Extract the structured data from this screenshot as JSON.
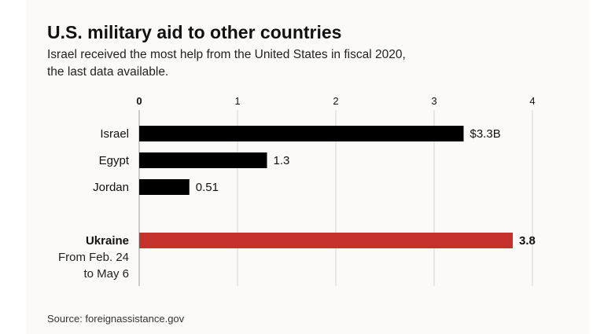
{
  "header": {
    "title": "U.S. military aid to other countries",
    "subtitle": "Israel received the most help from the United States in fiscal 2020, the last data available."
  },
  "footer": {
    "source": "Source: foreignassistance.gov"
  },
  "colors": {
    "background": "#fcfaf8",
    "default_bar": "#000000",
    "highlight_bar": "#c5322b",
    "gridline": "#d9d6d2",
    "axis": "#bbbbbb"
  },
  "chart_data": {
    "type": "bar",
    "orientation": "horizontal",
    "title": "U.S. military aid to other countries",
    "xlabel": "",
    "ylabel": "",
    "unit": "billions of dollars",
    "xlim": [
      0,
      4
    ],
    "ticks": [
      0,
      1,
      2,
      3,
      4
    ],
    "tick_labels": [
      "0",
      "1",
      "2",
      "3",
      "4"
    ],
    "grid": true,
    "bars": [
      {
        "category": "Israel",
        "value": 3.3,
        "label": "$3.3B",
        "highlight": false,
        "sublabel": []
      },
      {
        "category": "Egypt",
        "value": 1.3,
        "label": "1.3",
        "highlight": false,
        "sublabel": []
      },
      {
        "category": "Jordan",
        "value": 0.51,
        "label": "0.51",
        "highlight": false,
        "sublabel": []
      },
      {
        "category": "Ukraine",
        "value": 3.8,
        "label": "3.8",
        "highlight": true,
        "sublabel": [
          "From Feb. 24",
          "to May 6"
        ]
      }
    ]
  }
}
